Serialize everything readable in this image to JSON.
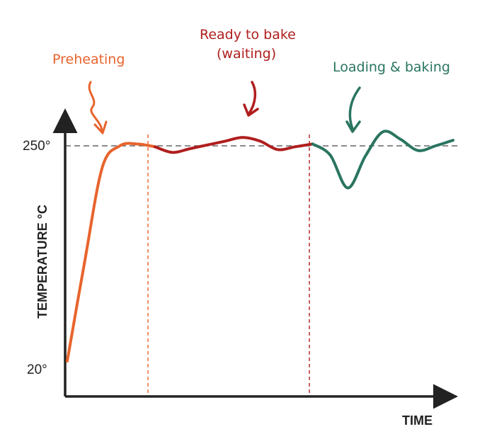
{
  "colors": {
    "preheating": "#e8642c",
    "ready": "#b01e1e",
    "baking": "#2a7560",
    "axis": "#222222",
    "reference": "#666666"
  },
  "chart_data": {
    "type": "line",
    "xlabel": "TIME",
    "ylabel": "TEMPERATURE °C",
    "y_ticks": [
      "250°",
      "20°"
    ],
    "reference_line": {
      "y": 250,
      "style": "dashed"
    },
    "phase_boundaries": [
      "preheating-end",
      "ready-end"
    ],
    "annotations": [
      {
        "id": "preheating",
        "text": "Preheating",
        "color": "#e8642c"
      },
      {
        "id": "ready",
        "text_lines": [
          "Ready to bake",
          "(waiting)"
        ],
        "color": "#b01e1e"
      },
      {
        "id": "baking",
        "text": "Loading & baking",
        "color": "#2a7560"
      }
    ],
    "series": [
      {
        "phase": "preheating",
        "color": "#e8642c",
        "points": [
          [
            0,
            20
          ],
          [
            1,
            127
          ],
          [
            2,
            227
          ],
          [
            3,
            250
          ],
          [
            4,
            252
          ],
          [
            5,
            249
          ]
        ]
      },
      {
        "phase": "ready",
        "color": "#b01e1e",
        "points": [
          [
            5,
            249
          ],
          [
            6,
            243
          ],
          [
            7,
            247
          ],
          [
            8,
            251
          ],
          [
            9,
            255
          ],
          [
            10,
            259
          ],
          [
            11,
            255
          ],
          [
            12,
            246
          ],
          [
            13,
            249
          ],
          [
            14,
            252
          ]
        ]
      },
      {
        "phase": "baking",
        "color": "#2a7560",
        "points": [
          [
            14,
            252
          ],
          [
            15,
            240
          ],
          [
            16,
            205
          ],
          [
            17,
            239
          ],
          [
            18,
            265
          ],
          [
            19,
            257
          ],
          [
            20,
            245
          ],
          [
            21,
            250
          ],
          [
            22,
            256
          ]
        ]
      }
    ]
  }
}
